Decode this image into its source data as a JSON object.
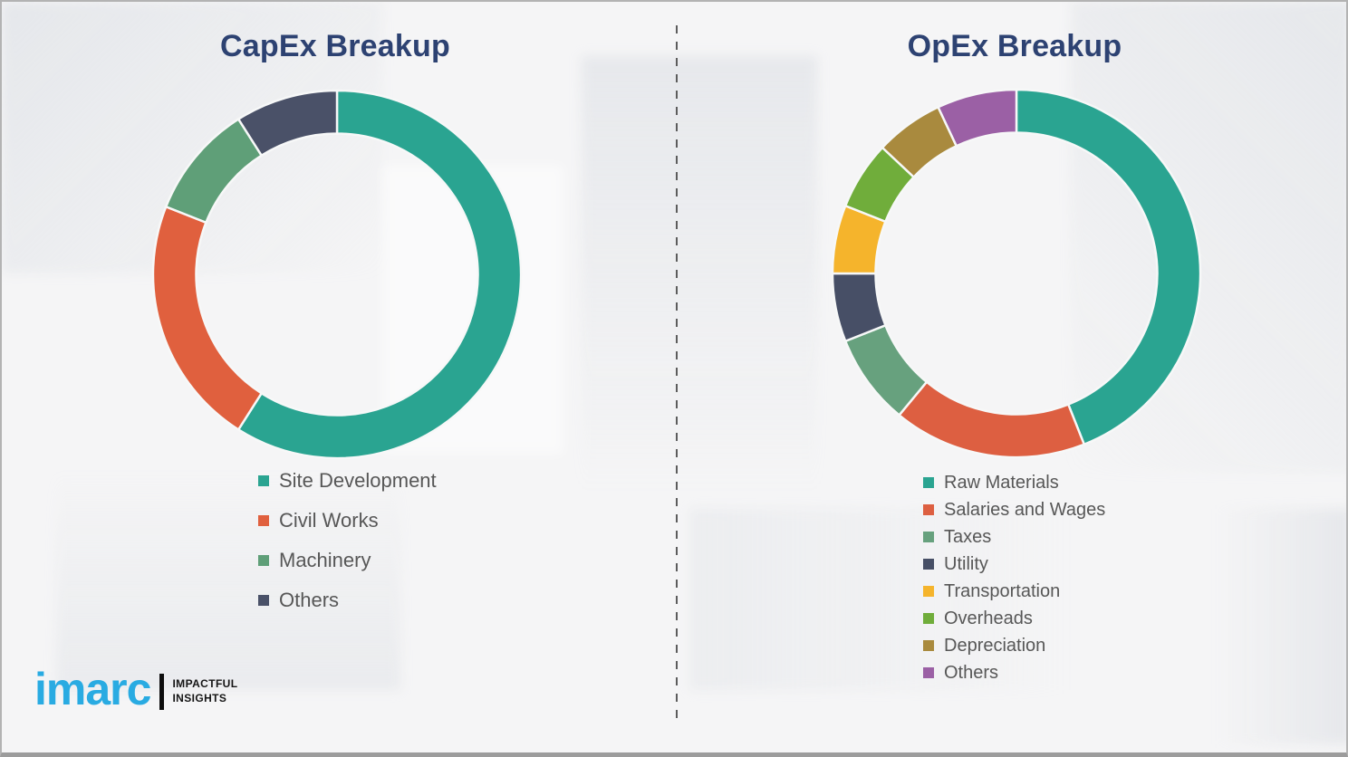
{
  "page": {
    "background_color": "#f5f5f6",
    "border_color": "#b3b3b3",
    "title_color": "#2d4272",
    "legend_text_color": "#575757"
  },
  "logo": {
    "brand": "imarc",
    "tagline_line1": "IMPACTFUL",
    "tagline_line2": "INSIGHTS",
    "brand_color": "#29abe2"
  },
  "chart_data": [
    {
      "type": "pie",
      "subtype": "donut",
      "title": "CapEx Breakup",
      "units": "percent (estimated from arc angles; no labels shown)",
      "start_angle_deg": 0,
      "direction": "clockwise",
      "legend_position": "below-left",
      "segments": [
        {
          "label": "Site Development",
          "value": 59,
          "color": "#2aa491"
        },
        {
          "label": "Civil Works",
          "value": 22,
          "color": "#e0603e"
        },
        {
          "label": "Machinery",
          "value": 10,
          "color": "#5f9f78"
        },
        {
          "label": "Others",
          "value": 9,
          "color": "#4a5168"
        }
      ]
    },
    {
      "type": "pie",
      "subtype": "donut",
      "title": "OpEx Breakup",
      "units": "percent (estimated from arc angles; no labels shown)",
      "start_angle_deg": 0,
      "direction": "clockwise",
      "legend_position": "below-left",
      "segments": [
        {
          "label": "Raw Materials",
          "value": 44,
          "color": "#2aa491"
        },
        {
          "label": "Salaries and Wages",
          "value": 17,
          "color": "#dd5f41"
        },
        {
          "label": "Taxes",
          "value": 8,
          "color": "#67a17e"
        },
        {
          "label": "Utility",
          "value": 6,
          "color": "#474f66"
        },
        {
          "label": "Transportation",
          "value": 6,
          "color": "#f5b42c"
        },
        {
          "label": "Overheads",
          "value": 6,
          "color": "#70ad3b"
        },
        {
          "label": "Depreciation",
          "value": 6,
          "color": "#a98a3e"
        },
        {
          "label": "Others",
          "value": 7,
          "color": "#9b60a5"
        }
      ]
    }
  ]
}
